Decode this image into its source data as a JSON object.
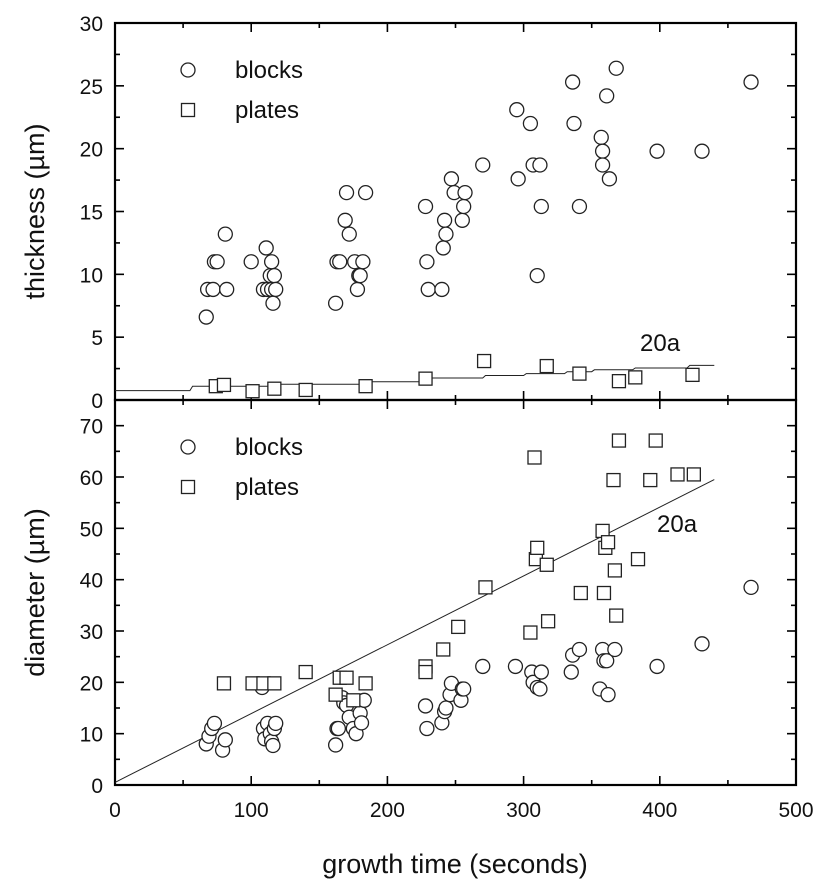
{
  "chart_data": [
    {
      "panel": "top",
      "type": "scatter",
      "xlabel": "growth time (seconds)",
      "ylabel": "thickness (µm)",
      "xlim": [
        0,
        500
      ],
      "ylim": [
        0,
        30
      ],
      "xticks": [
        0,
        100,
        200,
        300,
        400,
        500
      ],
      "yticks": [
        0,
        5,
        10,
        15,
        20,
        25,
        30
      ],
      "legend": {
        "position": "top-left",
        "entries": [
          "blocks",
          "plates"
        ]
      },
      "annotation": "20a",
      "series": [
        {
          "name": "blocks",
          "marker": "circle",
          "points": [
            [
              67,
              6.6
            ],
            [
              68,
              8.8
            ],
            [
              72,
              8.8
            ],
            [
              73,
              11
            ],
            [
              75,
              11
            ],
            [
              81,
              13.2
            ],
            [
              82,
              8.8
            ],
            [
              100,
              11
            ],
            [
              109,
              8.8
            ],
            [
              111,
              12.1
            ],
            [
              112,
              8.8
            ],
            [
              114,
              9.9
            ],
            [
              115,
              11
            ],
            [
              115,
              8.8
            ],
            [
              116,
              7.7
            ],
            [
              117,
              9.9
            ],
            [
              118,
              8.8
            ],
            [
              162,
              7.7
            ],
            [
              163,
              11
            ],
            [
              165,
              11
            ],
            [
              169,
              14.3
            ],
            [
              170,
              16.5
            ],
            [
              172,
              13.2
            ],
            [
              176,
              11
            ],
            [
              178,
              8.8
            ],
            [
              179,
              9.9
            ],
            [
              180,
              9.9
            ],
            [
              182,
              11
            ],
            [
              184,
              16.5
            ],
            [
              228,
              15.4
            ],
            [
              229,
              11
            ],
            [
              230,
              8.8
            ],
            [
              240,
              8.8
            ],
            [
              241,
              12.1
            ],
            [
              242,
              14.3
            ],
            [
              243,
              13.2
            ],
            [
              247,
              17.6
            ],
            [
              249,
              16.5
            ],
            [
              255,
              14.3
            ],
            [
              256,
              15.4
            ],
            [
              257,
              16.5
            ],
            [
              270,
              18.7
            ],
            [
              295,
              23.1
            ],
            [
              296,
              17.6
            ],
            [
              305,
              22
            ],
            [
              307,
              18.7
            ],
            [
              310,
              9.9
            ],
            [
              312,
              18.7
            ],
            [
              313,
              15.4
            ],
            [
              336,
              25.3
            ],
            [
              337,
              22
            ],
            [
              341,
              15.4
            ],
            [
              357,
              20.9
            ],
            [
              358,
              19.8
            ],
            [
              358,
              18.7
            ],
            [
              361,
              24.2
            ],
            [
              363,
              17.6
            ],
            [
              368,
              26.4
            ],
            [
              398,
              19.8
            ],
            [
              431,
              19.8
            ],
            [
              467,
              25.3
            ]
          ]
        },
        {
          "name": "plates",
          "marker": "square",
          "points": [
            [
              74,
              1.1
            ],
            [
              80,
              1.2
            ],
            [
              101,
              0.7
            ],
            [
              117,
              0.9
            ],
            [
              140,
              0.8
            ],
            [
              184,
              1.1
            ],
            [
              228,
              1.7
            ],
            [
              271,
              3.1
            ],
            [
              317,
              2.7
            ],
            [
              341,
              2.1
            ],
            [
              370,
              1.5
            ],
            [
              382,
              1.8
            ],
            [
              424,
              2.0
            ]
          ]
        }
      ],
      "fit_line_step": [
        [
          0,
          0.75
        ],
        [
          55,
          0.75
        ],
        [
          57,
          1.1
        ],
        [
          118,
          1.1
        ],
        [
          120,
          1.25
        ],
        [
          182,
          1.25
        ],
        [
          184,
          1.45
        ],
        [
          230,
          1.45
        ],
        [
          232,
          1.75
        ],
        [
          270,
          1.75
        ],
        [
          272,
          1.95
        ],
        [
          300,
          1.95
        ],
        [
          302,
          2.1
        ],
        [
          330,
          2.1
        ],
        [
          332,
          2.25
        ],
        [
          350,
          2.25
        ],
        [
          352,
          2.4
        ],
        [
          380,
          2.4
        ],
        [
          382,
          2.55
        ],
        [
          420,
          2.55
        ],
        [
          422,
          2.75
        ],
        [
          440,
          2.75
        ]
      ]
    },
    {
      "panel": "bottom",
      "type": "scatter",
      "xlabel": "growth time (seconds)",
      "ylabel": "diameter (µm)",
      "xlim": [
        0,
        500
      ],
      "ylim": [
        0,
        75
      ],
      "xticks": [
        0,
        100,
        200,
        300,
        400,
        500
      ],
      "yticks": [
        0,
        10,
        20,
        30,
        40,
        50,
        60,
        70
      ],
      "legend": {
        "position": "top-left",
        "entries": [
          "blocks",
          "plates"
        ]
      },
      "annotation": "20a",
      "series": [
        {
          "name": "blocks",
          "marker": "circle",
          "points": [
            [
              67,
              8
            ],
            [
              69,
              9.5
            ],
            [
              71,
              11
            ],
            [
              73,
              12
            ],
            [
              79,
              6.8
            ],
            [
              81,
              8.8
            ],
            [
              108,
              19
            ],
            [
              109,
              11
            ],
            [
              110,
              9
            ],
            [
              112,
              12
            ],
            [
              114,
              10
            ],
            [
              115,
              8.5
            ],
            [
              116,
              7.7
            ],
            [
              117,
              11
            ],
            [
              118,
              12
            ],
            [
              162,
              7.8
            ],
            [
              163,
              11
            ],
            [
              164,
              11
            ],
            [
              167,
              17
            ],
            [
              168,
              16
            ],
            [
              170,
              15.5
            ],
            [
              172,
              13.2
            ],
            [
              175,
              11
            ],
            [
              177,
              10
            ],
            [
              180,
              14
            ],
            [
              181,
              12.1
            ],
            [
              183,
              16.5
            ],
            [
              228,
              15.4
            ],
            [
              229,
              11
            ],
            [
              240,
              12.1
            ],
            [
              242,
              14.3
            ],
            [
              243,
              15
            ],
            [
              246,
              17.6
            ],
            [
              247,
              19.8
            ],
            [
              254,
              16.5
            ],
            [
              255,
              18.7
            ],
            [
              256,
              18.7
            ],
            [
              270,
              23.1
            ],
            [
              294,
              23.1
            ],
            [
              306,
              22
            ],
            [
              307,
              20
            ],
            [
              310,
              19
            ],
            [
              312,
              18.7
            ],
            [
              313,
              22
            ],
            [
              335,
              22
            ],
            [
              336,
              25.3
            ],
            [
              341,
              26.4
            ],
            [
              356,
              18.7
            ],
            [
              358,
              26.4
            ],
            [
              359,
              24.2
            ],
            [
              361,
              24.2
            ],
            [
              362,
              17.6
            ],
            [
              367,
              26.4
            ],
            [
              398,
              23.1
            ],
            [
              431,
              27.5
            ],
            [
              467,
              38.5
            ]
          ]
        },
        {
          "name": "plates",
          "marker": "square",
          "points": [
            [
              80,
              19.8
            ],
            [
              101,
              19.8
            ],
            [
              109,
              19.8
            ],
            [
              117,
              19.8
            ],
            [
              140,
              22
            ],
            [
              162,
              17.6
            ],
            [
              165,
              20.9
            ],
            [
              170,
              20.9
            ],
            [
              175,
              16.5
            ],
            [
              184,
              19.8
            ],
            [
              228,
              23.1
            ],
            [
              228,
              22
            ],
            [
              241,
              26.4
            ],
            [
              252,
              30.8
            ],
            [
              272,
              38.5
            ],
            [
              305,
              29.7
            ],
            [
              308,
              63.8
            ],
            [
              309,
              44
            ],
            [
              310,
              46.2
            ],
            [
              317,
              42.9
            ],
            [
              318,
              31.9
            ],
            [
              342,
              37.4
            ],
            [
              358,
              49.5
            ],
            [
              359,
              37.4
            ],
            [
              360,
              46.2
            ],
            [
              362,
              47.3
            ],
            [
              366,
              59.4
            ],
            [
              367,
              41.8
            ],
            [
              368,
              33
            ],
            [
              370,
              67.1
            ],
            [
              384,
              44
            ],
            [
              393,
              59.4
            ],
            [
              397,
              67.1
            ],
            [
              413,
              60.5
            ],
            [
              425,
              60.5
            ]
          ]
        }
      ],
      "fit_line": [
        [
          0,
          0.5
        ],
        [
          440,
          59.5
        ]
      ]
    }
  ]
}
